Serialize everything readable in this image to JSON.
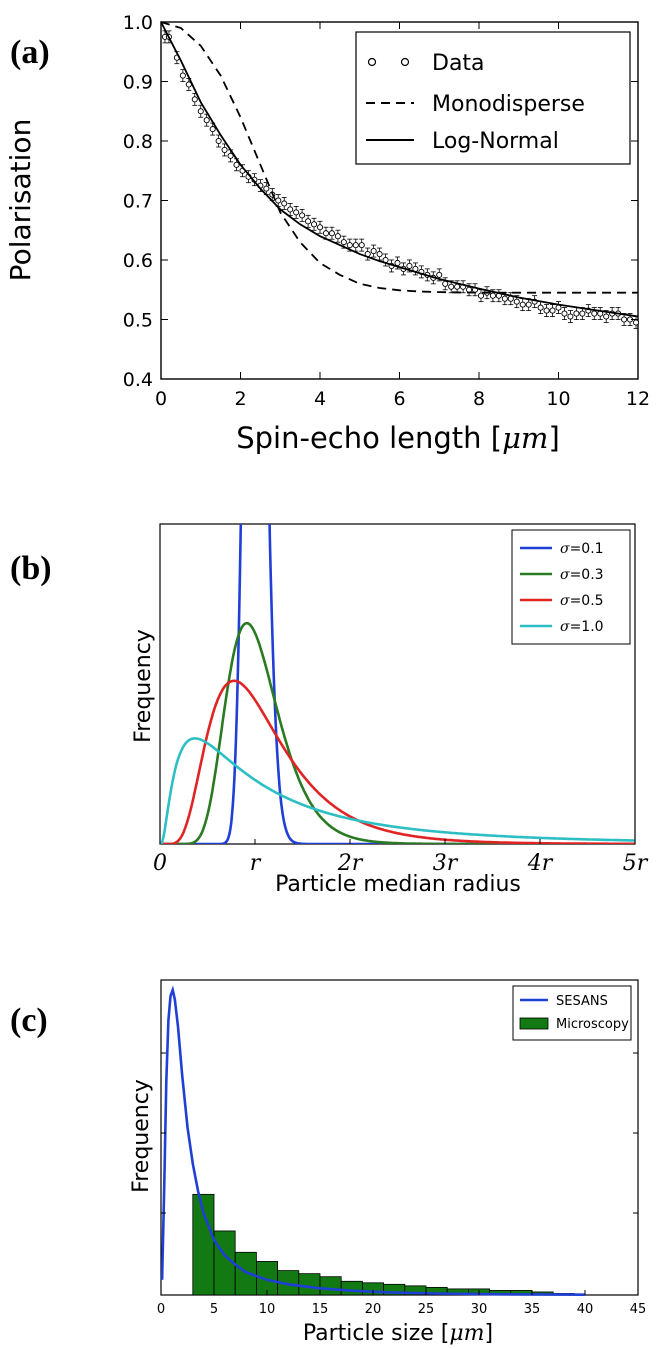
{
  "panels": {
    "a": {
      "label": "(a)"
    },
    "b": {
      "label": "(b)"
    },
    "c": {
      "label": "(c)"
    }
  },
  "chart_data": [
    {
      "id": "a",
      "type": "line",
      "xlabel_text": "Spin-echo length",
      "xlabel_unit": "μm",
      "ylabel": "Polarisation",
      "xlim": [
        0,
        12
      ],
      "ylim": [
        0.4,
        1.0
      ],
      "xticks": [
        0,
        2,
        4,
        6,
        8,
        10,
        12
      ],
      "xtick_labels": [
        "0",
        "2",
        "4",
        "6",
        "8",
        "10",
        "12"
      ],
      "yticks": [
        0.4,
        0.5,
        0.6,
        0.7,
        0.8,
        0.9,
        1.0
      ],
      "ytick_labels": [
        "0.4",
        "0.5",
        "0.6",
        "0.7",
        "0.8",
        "0.9",
        "1.0"
      ],
      "legend_position": "top-right",
      "legend": [
        {
          "name": "Data",
          "style": "markers"
        },
        {
          "name": "Monodisperse",
          "style": "dashed"
        },
        {
          "name": "Log-Normal",
          "style": "solid"
        }
      ],
      "series": [
        {
          "name": "Data",
          "style": "markers",
          "x": [
            0.1,
            0.2,
            0.4,
            0.55,
            0.7,
            0.85,
            1.0,
            1.15,
            1.3,
            1.45,
            1.6,
            1.75,
            1.9,
            2.05,
            2.2,
            2.35,
            2.5,
            2.65,
            2.8,
            2.95,
            3.1,
            3.25,
            3.4,
            3.55,
            3.7,
            3.85,
            4.0,
            4.15,
            4.3,
            4.45,
            4.6,
            4.75,
            4.9,
            5.05,
            5.2,
            5.35,
            5.5,
            5.65,
            5.8,
            5.95,
            6.1,
            6.25,
            6.4,
            6.55,
            6.7,
            6.85,
            7.0,
            7.15,
            7.3,
            7.45,
            7.6,
            7.75,
            7.9,
            8.05,
            8.2,
            8.35,
            8.5,
            8.65,
            8.8,
            8.95,
            9.1,
            9.25,
            9.4,
            9.55,
            9.7,
            9.85,
            10.0,
            10.15,
            10.3,
            10.45,
            10.6,
            10.75,
            10.9,
            11.05,
            11.2,
            11.35,
            11.5,
            11.65,
            11.8,
            11.95
          ],
          "y": [
            0.975,
            0.975,
            0.94,
            0.91,
            0.895,
            0.87,
            0.85,
            0.835,
            0.82,
            0.8,
            0.785,
            0.775,
            0.76,
            0.75,
            0.74,
            0.735,
            0.725,
            0.72,
            0.71,
            0.7,
            0.695,
            0.685,
            0.68,
            0.675,
            0.665,
            0.66,
            0.655,
            0.645,
            0.645,
            0.64,
            0.63,
            0.625,
            0.625,
            0.625,
            0.61,
            0.615,
            0.61,
            0.6,
            0.59,
            0.595,
            0.585,
            0.59,
            0.585,
            0.58,
            0.575,
            0.57,
            0.575,
            0.56,
            0.555,
            0.555,
            0.555,
            0.55,
            0.55,
            0.54,
            0.545,
            0.54,
            0.54,
            0.535,
            0.535,
            0.53,
            0.525,
            0.525,
            0.53,
            0.52,
            0.515,
            0.515,
            0.52,
            0.51,
            0.505,
            0.51,
            0.51,
            0.515,
            0.51,
            0.51,
            0.505,
            0.51,
            0.51,
            0.5,
            0.5,
            0.495
          ]
        },
        {
          "name": "Monodisperse",
          "style": "dashed",
          "x": [
            0,
            0.5,
            1.0,
            1.5,
            2.0,
            2.5,
            3.0,
            3.5,
            4.0,
            4.5,
            5.0,
            5.5,
            6.0,
            6.5,
            7.0,
            8.0,
            9.0,
            10.0,
            11.0,
            12.0
          ],
          "y": [
            1.0,
            0.99,
            0.96,
            0.91,
            0.84,
            0.76,
            0.68,
            0.63,
            0.595,
            0.575,
            0.56,
            0.553,
            0.549,
            0.547,
            0.546,
            0.545,
            0.545,
            0.545,
            0.545,
            0.545
          ]
        },
        {
          "name": "Log-Normal",
          "style": "solid",
          "x": [
            0,
            0.5,
            1.0,
            1.5,
            2.0,
            2.5,
            3.0,
            3.5,
            4.0,
            4.5,
            5.0,
            5.5,
            6.0,
            6.5,
            7.0,
            8.0,
            9.0,
            10.0,
            11.0,
            12.0
          ],
          "y": [
            1.0,
            0.935,
            0.865,
            0.81,
            0.76,
            0.72,
            0.685,
            0.66,
            0.64,
            0.625,
            0.61,
            0.598,
            0.588,
            0.578,
            0.568,
            0.552,
            0.537,
            0.525,
            0.515,
            0.505
          ]
        }
      ]
    },
    {
      "id": "b",
      "type": "line",
      "xlabel": "Particle median radius",
      "ylabel": "Frequency",
      "xlim": [
        0,
        5
      ],
      "ylim": [
        0,
        1
      ],
      "xticks": [
        0,
        1,
        2,
        3,
        4,
        5
      ],
      "xtick_labels": [
        "0",
        "r",
        "2r",
        "3r",
        "4r",
        "5r"
      ],
      "legend_position": "top-right",
      "series": [
        {
          "name": "σ=0.1",
          "label_symbol": "σ",
          "label_value": "=0.1",
          "sigma": 0.1,
          "color": "#1f3fd6"
        },
        {
          "name": "σ=0.3",
          "label_symbol": "σ",
          "label_value": "=0.3",
          "sigma": 0.3,
          "color": "#2a7a22"
        },
        {
          "name": "σ=0.5",
          "label_symbol": "σ",
          "label_value": "=0.5",
          "sigma": 0.5,
          "color": "#e02424"
        },
        {
          "name": "σ=1.0",
          "label_symbol": "σ",
          "label_value": "=1.0",
          "sigma": 1.0,
          "color": "#2ebfc4"
        }
      ],
      "peak_heights_fraction_of_axis": {
        "σ=0.3": 0.69,
        "σ=0.5": 0.51,
        "σ=1.0": 0.33
      }
    },
    {
      "id": "c",
      "type": "bar",
      "xlabel_text": "Particle size",
      "xlabel_unit": "μm",
      "ylabel": "Frequency",
      "xlim": [
        0,
        45
      ],
      "xticks": [
        0,
        5,
        10,
        15,
        20,
        25,
        30,
        35,
        40,
        45
      ],
      "xtick_labels": [
        "0",
        "5",
        "10",
        "15",
        "20",
        "25",
        "30",
        "35",
        "40",
        "45"
      ],
      "legend_position": "top-right",
      "legend": [
        {
          "name": "SESANS",
          "style": "line",
          "color": "#1f3fd6"
        },
        {
          "name": "Microscopy",
          "style": "bar",
          "color": "#137a13"
        }
      ],
      "histogram": {
        "name": "Microscopy",
        "color": "#137a13",
        "bin_edges": [
          3,
          5,
          7,
          9,
          11,
          13,
          15,
          17,
          19,
          21,
          23,
          25,
          27,
          29,
          31,
          33,
          35,
          37,
          39
        ],
        "values": [
          0.33,
          0.21,
          0.14,
          0.11,
          0.08,
          0.07,
          0.06,
          0.045,
          0.04,
          0.035,
          0.03,
          0.025,
          0.02,
          0.02,
          0.015,
          0.015,
          0.01,
          0.005
        ]
      },
      "curve": {
        "name": "SESANS",
        "color": "#1f3fd6",
        "x": [
          0.1,
          0.3,
          0.5,
          0.7,
          0.9,
          1.1,
          1.3,
          1.6,
          2.0,
          2.5,
          3.0,
          3.5,
          4.0,
          5.0,
          6.0,
          7.0,
          8.0,
          10.0,
          12.0,
          15.0,
          18.0,
          22.0,
          26.0,
          30.0,
          35.0,
          40.0
        ],
        "y": [
          0.05,
          0.35,
          0.7,
          0.9,
          0.98,
          1.0,
          0.97,
          0.88,
          0.72,
          0.55,
          0.43,
          0.34,
          0.27,
          0.18,
          0.13,
          0.1,
          0.075,
          0.05,
          0.035,
          0.022,
          0.014,
          0.008,
          0.005,
          0.003,
          0.002,
          0.001
        ]
      }
    }
  ]
}
